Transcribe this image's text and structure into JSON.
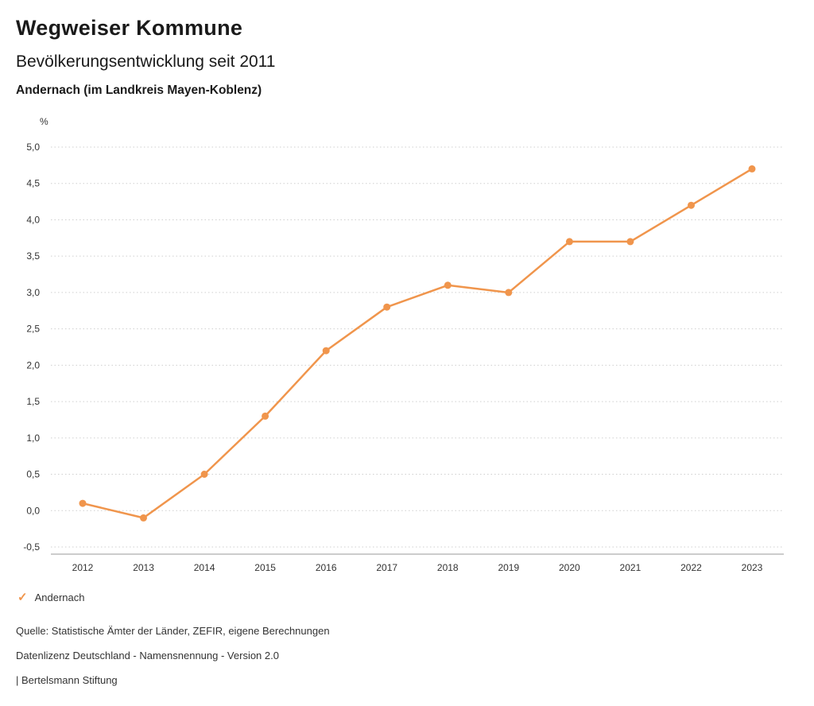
{
  "header": {
    "title": "Wegweiser Kommune",
    "subtitle": "Bevölkerungsentwicklung seit 2011",
    "region": "Andernach (im Landkreis Mayen-Koblenz)"
  },
  "chart_data": {
    "type": "line",
    "title": "Bevölkerungsentwicklung seit 2011",
    "subtitle": "Andernach (im Landkreis Mayen-Koblenz)",
    "unit_label": "%",
    "categories": [
      "2012",
      "2013",
      "2014",
      "2015",
      "2016",
      "2017",
      "2018",
      "2019",
      "2020",
      "2021",
      "2022",
      "2023"
    ],
    "series": [
      {
        "name": "Andernach",
        "color": "#F0954C",
        "values": [
          0.1,
          -0.1,
          0.5,
          1.3,
          2.2,
          2.8,
          3.1,
          3.0,
          3.7,
          3.7,
          4.2,
          4.7
        ]
      }
    ],
    "ylim": [
      -0.5,
      5.0
    ],
    "y_tick_step": 0.5,
    "y_tick_labels": [
      "5,0",
      "4,5",
      "4,0",
      "3,5",
      "3,0",
      "2,5",
      "2,0",
      "1,5",
      "1,0",
      "0,5",
      "0,0",
      "-0,5"
    ],
    "grid": "dotted horizontal gridlines, solid bottom axis",
    "legend_position": "bottom-left"
  },
  "legend": {
    "items": [
      {
        "label": "Andernach",
        "color": "#F0954C",
        "check_glyph": "✓"
      }
    ]
  },
  "footer": {
    "source": "Quelle: Statistische Ämter der Länder, ZEFIR, eigene Berechnungen",
    "license": "Datenlizenz Deutschland - Namensnennung - Version 2.0",
    "attribution": "| Bertelsmann Stiftung"
  }
}
